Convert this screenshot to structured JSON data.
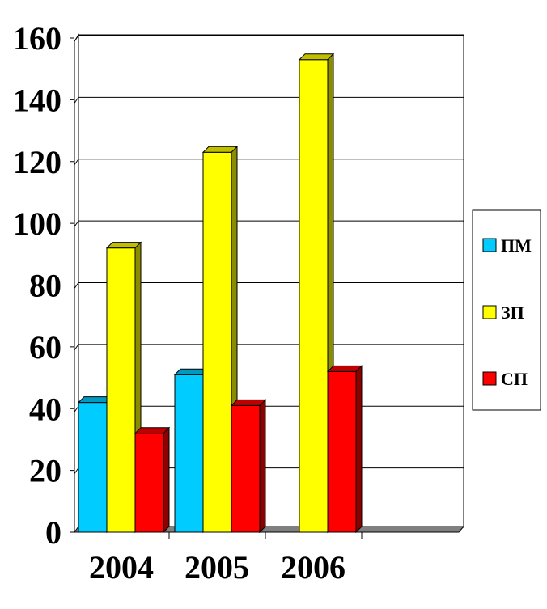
{
  "chart_data": {
    "type": "bar",
    "style": "3d-clustered-column",
    "categories": [
      "2004",
      "2005",
      "2006"
    ],
    "series": [
      {
        "name": "ПМ",
        "color": "#00CCFF",
        "values": [
          42,
          51,
          null
        ]
      },
      {
        "name": "ЗП",
        "color": "#FFFF00",
        "values": [
          92,
          123,
          153
        ]
      },
      {
        "name": "СП",
        "color": "#FF0000",
        "values": [
          32,
          41,
          52
        ]
      }
    ],
    "ylim": [
      0,
      160
    ],
    "yticks": [
      0,
      20,
      40,
      60,
      80,
      100,
      120,
      140,
      160
    ],
    "grid": true,
    "legend_position": "right"
  }
}
